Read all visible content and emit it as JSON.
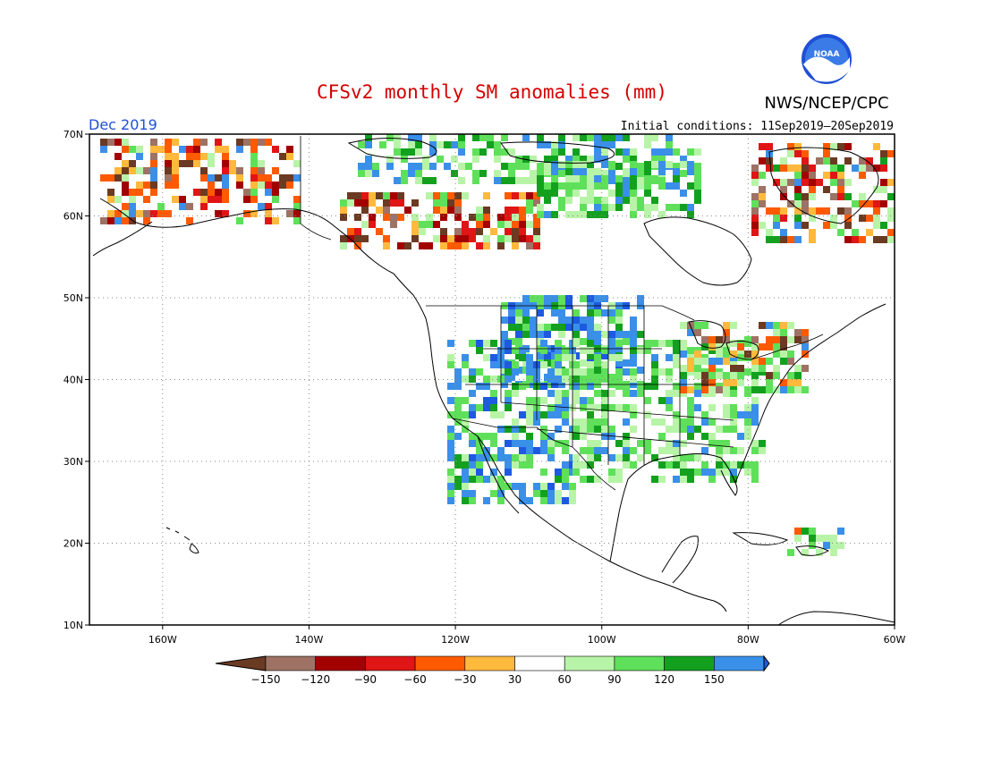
{
  "header": {
    "title": "CFSv2 monthly SM anomalies (mm)",
    "valid_month": "Dec 2019",
    "initial_conditions": "Initial conditions: 11Sep2019–20Sep2019",
    "agency": "NWS/NCEP/CPC",
    "logo_text": "NOAA"
  },
  "colors": {
    "title": "#d40000",
    "month": "#1f4fd6",
    "land_outline": "#000000",
    "grid": "#888888"
  },
  "map": {
    "lon_range": [
      -170,
      -60
    ],
    "lat_range": [
      10,
      70
    ],
    "lon_ticks": [
      {
        "value": -160,
        "label": "160W"
      },
      {
        "value": -140,
        "label": "140W"
      },
      {
        "value": -120,
        "label": "120W"
      },
      {
        "value": -100,
        "label": "100W"
      },
      {
        "value": -80,
        "label": "80W"
      },
      {
        "value": -60,
        "label": "60W"
      }
    ],
    "lat_ticks": [
      {
        "value": 70,
        "label": "70N"
      },
      {
        "value": 60,
        "label": "60N"
      },
      {
        "value": 50,
        "label": "50N"
      },
      {
        "value": 40,
        "label": "40N"
      },
      {
        "value": 30,
        "label": "30N"
      },
      {
        "value": 20,
        "label": "20N"
      },
      {
        "value": 10,
        "label": "10N"
      }
    ],
    "grid": "dotted"
  },
  "colorbar": {
    "labels": [
      "−150",
      "−120",
      "−90",
      "−60",
      "−30",
      "30",
      "60",
      "90",
      "120",
      "150"
    ],
    "colors": [
      "#6b3a22",
      "#9e7264",
      "#a30000",
      "#e01515",
      "#ff5a00",
      "#ffb93d",
      "#ffffff",
      "#b8f4a8",
      "#5fe05a",
      "#13a01f",
      "#3a8fe8",
      "#1e5ae0"
    ]
  }
}
